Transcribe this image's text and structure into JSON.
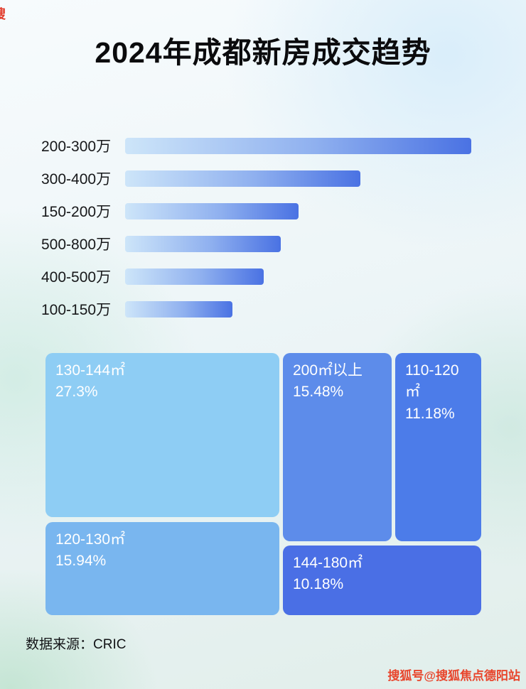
{
  "title": "2024年成都新房成交趋势",
  "footer": {
    "source": "数据来源：CRIC"
  },
  "watermarks": {
    "bottom_right": "搜狐号@搜狐焦点德阳站",
    "top_left_fragment": "搜"
  },
  "colors": {
    "bar_gradient_start": "#cde5f9",
    "bar_gradient_end": "#4a72e3",
    "watermark_red": "#e8452c"
  },
  "chart_data": [
    {
      "type": "bar",
      "orientation": "horizontal",
      "title": "2024年成都新房成交趋势",
      "categories": [
        "200-300万",
        "300-400万",
        "150-200万",
        "500-800万",
        "400-500万",
        "100-150万"
      ],
      "values": [
        100,
        68,
        50,
        45,
        40,
        31
      ],
      "values_note": "bars carry no numeric labels in source; values are estimated relative lengths as % of the longest bar",
      "grid": false,
      "legend": false
    },
    {
      "type": "treemap",
      "items": [
        {
          "label": "130-144㎡",
          "value": "27.3%",
          "color": "#8ecdf4"
        },
        {
          "label": "120-130㎡",
          "value": "15.94%",
          "color": "#79b6ef"
        },
        {
          "label": "200㎡以上",
          "value": "15.48%",
          "color": "#5d8cea"
        },
        {
          "label": "110-120㎡",
          "value": "11.18%",
          "color": "#4c7ce9"
        },
        {
          "label": "144-180㎡",
          "value": "10.18%",
          "color": "#4a6fe5"
        }
      ]
    }
  ]
}
